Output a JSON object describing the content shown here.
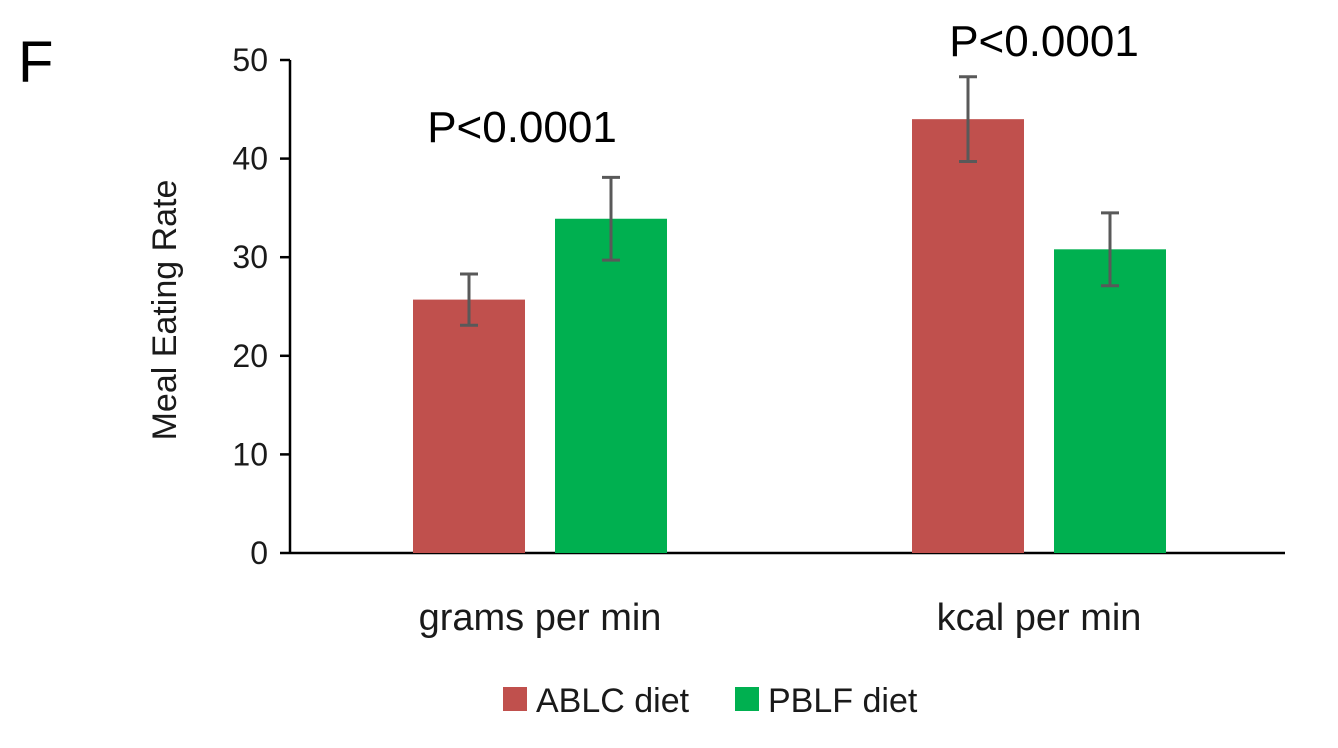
{
  "panel_label": "F",
  "chart_data": {
    "type": "bar",
    "title": "",
    "xlabel": "",
    "ylabel": "Meal Eating Rate",
    "ylim": [
      0,
      50
    ],
    "yticks": [
      0,
      10,
      20,
      30,
      40,
      50
    ],
    "categories": [
      "grams per min",
      "kcal per min"
    ],
    "series": [
      {
        "name": "ABLC diet",
        "color": "#C0504D",
        "values": [
          25.7,
          44.0
        ],
        "error": [
          2.6,
          4.3
        ]
      },
      {
        "name": "PBLF diet",
        "color": "#00B050",
        "values": [
          33.9,
          30.8
        ],
        "error": [
          4.2,
          3.7
        ]
      }
    ],
    "annotations": [
      "P<0.0001",
      "P<0.0001"
    ],
    "grid": false,
    "legend_position": "bottom"
  }
}
